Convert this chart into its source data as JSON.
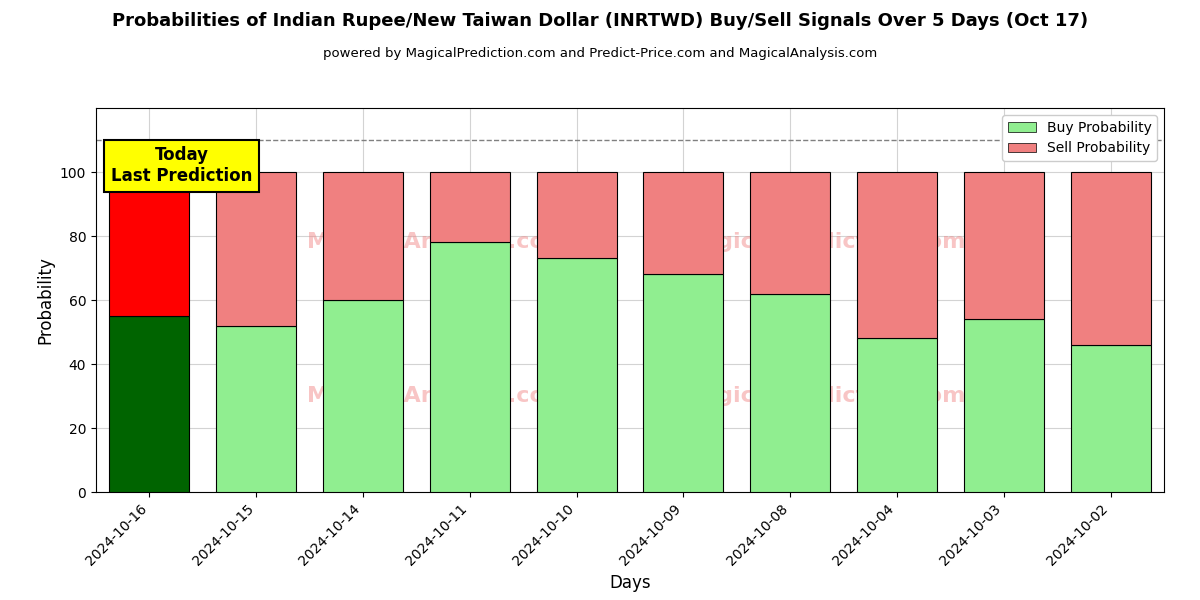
{
  "title": "Probabilities of Indian Rupee/New Taiwan Dollar (INRTWD) Buy/Sell Signals Over 5 Days (Oct 17)",
  "subtitle": "powered by MagicalPrediction.com and Predict-Price.com and MagicalAnalysis.com",
  "xlabel": "Days",
  "ylabel": "Probability",
  "categories": [
    "2024-10-16",
    "2024-10-15",
    "2024-10-14",
    "2024-10-11",
    "2024-10-10",
    "2024-10-09",
    "2024-10-08",
    "2024-10-04",
    "2024-10-03",
    "2024-10-02"
  ],
  "buy_values": [
    55,
    52,
    60,
    78,
    73,
    68,
    62,
    48,
    54,
    46
  ],
  "sell_values": [
    45,
    48,
    40,
    22,
    27,
    32,
    38,
    52,
    46,
    54
  ],
  "today_buy_color": "#006400",
  "today_sell_color": "#ff0000",
  "buy_color": "#90ee90",
  "sell_color": "#f08080",
  "today_annotation_text": "Today\nLast Prediction",
  "today_annotation_bg": "#ffff00",
  "dashed_line_y": 110,
  "ylim": [
    0,
    120
  ],
  "yticks": [
    0,
    20,
    40,
    60,
    80,
    100
  ],
  "legend_buy_label": "Buy Probability",
  "legend_sell_label": "Sell Probability",
  "figsize": [
    12,
    6
  ],
  "dpi": 100,
  "bar_width": 0.75
}
